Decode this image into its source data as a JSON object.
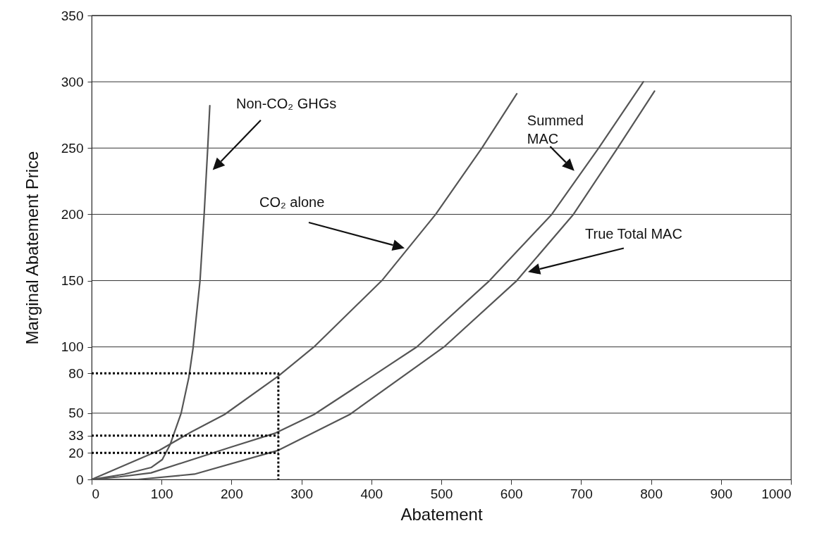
{
  "chart_data": {
    "type": "line",
    "xlabel": "Abatement",
    "ylabel": "Marginal Abatement Price",
    "xlim": [
      0,
      1000
    ],
    "xticks": [
      0,
      100,
      200,
      300,
      400,
      500,
      600,
      700,
      800,
      900,
      {
        "value": 1000,
        "label": "1000"
      }
    ],
    "ylim": [
      0,
      350
    ],
    "yticks": [
      0,
      20,
      33,
      50,
      80,
      100,
      150,
      200,
      250,
      300,
      350
    ],
    "grid": "y",
    "marker": "none",
    "series": [
      {
        "color": "#555555",
        "x": [
          0,
          47,
          85,
          101,
          112,
          128,
          139,
          145,
          155,
          161,
          166,
          169
        ],
        "values": [
          0,
          4,
          9,
          15,
          26,
          50,
          77,
          99,
          150,
          201,
          250,
          282
        ]
      },
      {
        "color": "#555555",
        "x": [
          0,
          97,
          143,
          190,
          267,
          318,
          415,
          492,
          558,
          608
        ],
        "values": [
          0,
          22,
          36,
          49,
          78,
          100,
          150,
          200,
          250,
          291
        ]
      },
      {
        "color": "#555555",
        "x": [
          0,
          40,
          85,
          197,
          263,
          318,
          373,
          465,
          569,
          658,
          725,
          789
        ],
        "values": [
          0,
          2,
          5,
          24,
          35,
          49,
          68,
          100,
          150,
          200,
          250,
          300
        ]
      },
      {
        "color": "#555555",
        "x": [
          0,
          66,
          147,
          267,
          369,
          504,
          608,
          689,
          752,
          805
        ],
        "values": [
          0,
          0,
          4,
          22,
          49,
          100,
          150,
          200,
          250,
          293
        ]
      },
      {
        "color": "#000000",
        "line_style": "dotted",
        "x": [
          0,
          267,
          267
        ],
        "values": [
          80,
          80,
          0
        ]
      },
      {
        "color": "#000000",
        "line_style": "dotted",
        "x": [
          0,
          267
        ],
        "values": [
          33,
          33
        ]
      },
      {
        "color": "#000000",
        "line_style": "dotted",
        "x": [
          0,
          267
        ],
        "values": [
          20,
          20
        ]
      }
    ],
    "annotations": [
      "Non-CO₂ GHGs",
      "CO₂ alone",
      "Summed MAC",
      "True Total MAC"
    ]
  }
}
